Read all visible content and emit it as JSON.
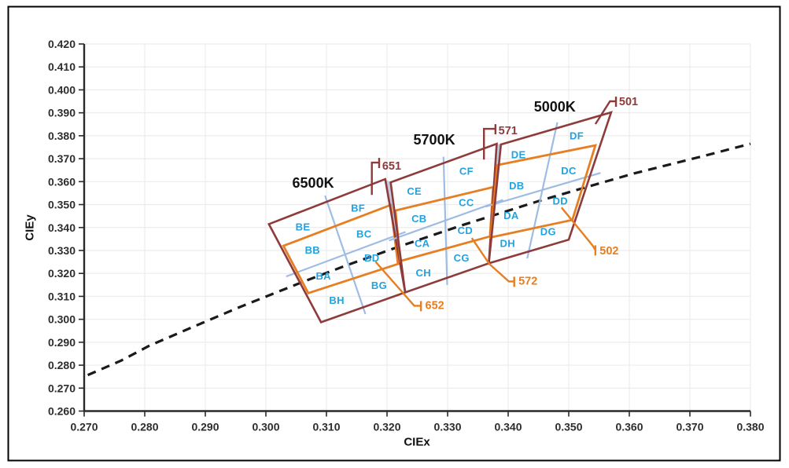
{
  "figure": {
    "background": "#ffffff",
    "border_color": "#000000"
  },
  "colors": {
    "maroon": "#8e3b3b",
    "orange": "#e67e22",
    "blue": "#9fbce2",
    "sliver_fill": "#b7c4dc",
    "bin_label": "#21a3e0",
    "locus": "#1a1a1a",
    "grid": "#ececec",
    "spine": "#2a2a2a",
    "tick_text": "#2d2d2d",
    "title_text": "#111111"
  },
  "chart_data": {
    "type": "line",
    "title": "",
    "xlabel": "CIEx",
    "ylabel": "CIEy",
    "xlim": [
      0.27,
      0.38
    ],
    "ylim": [
      0.26,
      0.42
    ],
    "xtick_step": 0.01,
    "ytick_step": 0.01,
    "tick_decimals": 3,
    "grid": true,
    "planckian_locus": [
      [
        0.2706,
        0.2757
      ],
      [
        0.2761,
        0.282
      ],
      [
        0.2807,
        0.2884
      ],
      [
        0.287,
        0.2956
      ],
      [
        0.2952,
        0.3048
      ],
      [
        0.3004,
        0.3103
      ],
      [
        0.3064,
        0.3166
      ],
      [
        0.3135,
        0.3237
      ],
      [
        0.3221,
        0.3318
      ],
      [
        0.3324,
        0.341
      ],
      [
        0.3451,
        0.3516
      ],
      [
        0.3538,
        0.3583
      ],
      [
        0.3608,
        0.3636
      ],
      [
        0.3726,
        0.3714
      ],
      [
        0.38,
        0.3765
      ]
    ],
    "overlap_slivers": [
      [
        [
          0.3197,
          0.3611
        ],
        [
          0.3206,
          0.3597
        ],
        [
          0.323,
          0.3117
        ]
      ],
      [
        [
          0.3381,
          0.3765
        ],
        [
          0.3388,
          0.3762
        ],
        [
          0.3368,
          0.3244
        ]
      ]
    ],
    "bins": [
      {
        "cct": "6500K",
        "title_pos": [
          0.3078,
          0.3594
        ],
        "outer_bin": {
          "label": "651",
          "polygon": [
            [
              0.3005,
              0.3415
            ],
            [
              0.3197,
              0.3611
            ],
            [
              0.323,
              0.3117
            ],
            [
              0.3091,
              0.2987
            ]
          ]
        },
        "inner_bin": {
          "label": "652",
          "polygon": [
            [
              0.3029,
              0.332
            ],
            [
              0.3206,
              0.3498
            ],
            [
              0.3218,
              0.3241
            ],
            [
              0.307,
              0.3114
            ]
          ]
        },
        "sub_bins": [
          {
            "label": "BE",
            "pos": [
              0.3061,
              0.3402
            ]
          },
          {
            "label": "BF",
            "pos": [
              0.3152,
              0.3484
            ]
          },
          {
            "label": "BB",
            "pos": [
              0.3077,
              0.3302
            ]
          },
          {
            "label": "BC",
            "pos": [
              0.3162,
              0.3371
            ]
          },
          {
            "label": "BA",
            "pos": [
              0.3095,
              0.3189
            ]
          },
          {
            "label": "BD",
            "pos": [
              0.3175,
              0.3268
            ]
          },
          {
            "label": "BH",
            "pos": [
              0.3117,
              0.3083
            ]
          },
          {
            "label": "BG",
            "pos": [
              0.3187,
              0.3148
            ]
          }
        ]
      },
      {
        "cct": "5700K",
        "title_pos": [
          0.3278,
          0.3782
        ],
        "outer_bin": {
          "label": "571",
          "polygon": [
            [
              0.3206,
              0.3597
            ],
            [
              0.3381,
              0.3765
            ],
            [
              0.3368,
              0.3244
            ],
            [
              0.323,
              0.3117
            ]
          ]
        },
        "inner_bin": {
          "label": "572",
          "polygon": [
            [
              0.3214,
              0.3474
            ],
            [
              0.3375,
              0.3576
            ],
            [
              0.337,
              0.3361
            ],
            [
              0.3222,
              0.3254
            ]
          ]
        },
        "sub_bins": [
          {
            "label": "CE",
            "pos": [
              0.3245,
              0.3559
            ]
          },
          {
            "label": "CF",
            "pos": [
              0.3331,
              0.3645
            ]
          },
          {
            "label": "CB",
            "pos": [
              0.3253,
              0.3439
            ]
          },
          {
            "label": "CC",
            "pos": [
              0.3331,
              0.3508
            ]
          },
          {
            "label": "CA",
            "pos": [
              0.3258,
              0.333
            ]
          },
          {
            "label": "CD",
            "pos": [
              0.3329,
              0.3388
            ]
          },
          {
            "label": "CH",
            "pos": [
              0.326,
              0.3203
            ]
          },
          {
            "label": "CG",
            "pos": [
              0.3323,
              0.3268
            ]
          }
        ]
      },
      {
        "cct": "5000K",
        "title_pos": [
          0.3477,
          0.3926
        ],
        "outer_bin": {
          "label": "501",
          "polygon": [
            [
              0.3388,
              0.3762
            ],
            [
              0.357,
              0.3902
            ],
            [
              0.35,
              0.3347
            ],
            [
              0.3368,
              0.3244
            ]
          ]
        },
        "inner_bin": {
          "label": "502",
          "polygon": [
            [
              0.3382,
              0.3672
            ],
            [
              0.3544,
              0.3758
            ],
            [
              0.3506,
              0.3433
            ],
            [
              0.3371,
              0.3357
            ]
          ]
        },
        "sub_bins": [
          {
            "label": "DE",
            "pos": [
              0.3417,
              0.3717
            ]
          },
          {
            "label": "DF",
            "pos": [
              0.3513,
              0.3799
            ]
          },
          {
            "label": "DB",
            "pos": [
              0.3414,
              0.3583
            ]
          },
          {
            "label": "DC",
            "pos": [
              0.35,
              0.3648
            ]
          },
          {
            "label": "DA",
            "pos": [
              0.3405,
              0.3453
            ]
          },
          {
            "label": "DD",
            "pos": [
              0.3486,
              0.3515
            ]
          },
          {
            "label": "DH",
            "pos": [
              0.3399,
              0.333
            ]
          },
          {
            "label": "DG",
            "pos": [
              0.3466,
              0.3382
            ]
          }
        ]
      }
    ],
    "callouts": [
      {
        "label": "651",
        "color_key": "maroon",
        "leader": [
          [
            0.3175,
            0.3542
          ],
          [
            0.3175,
            0.3683
          ],
          [
            0.3187,
            0.3683
          ]
        ],
        "text_pos": [
          0.3192,
          0.3666
        ]
      },
      {
        "label": "652",
        "color_key": "orange",
        "leader": [
          [
            0.3181,
            0.3251
          ],
          [
            0.3245,
            0.3059
          ],
          [
            0.3256,
            0.3059
          ]
        ],
        "text_pos": [
          0.3263,
          0.3059
        ]
      },
      {
        "label": "571",
        "color_key": "maroon",
        "leader": [
          [
            0.336,
            0.3696
          ],
          [
            0.336,
            0.383
          ],
          [
            0.3379,
            0.383
          ]
        ],
        "text_pos": [
          0.3384,
          0.382
        ]
      },
      {
        "label": "572",
        "color_key": "orange",
        "leader": [
          [
            0.334,
            0.3354
          ],
          [
            0.3369,
            0.3241
          ],
          [
            0.3401,
            0.3165
          ],
          [
            0.341,
            0.3165
          ]
        ],
        "text_pos": [
          0.3417,
          0.3165
        ]
      },
      {
        "label": "501",
        "color_key": "maroon",
        "leader": [
          [
            0.3544,
            0.3851
          ],
          [
            0.3568,
            0.395
          ],
          [
            0.3578,
            0.395
          ]
        ],
        "text_pos": [
          0.3583,
          0.3946
        ]
      },
      {
        "label": "502",
        "color_key": "orange",
        "leader": [
          [
            0.3488,
            0.3487
          ],
          [
            0.3539,
            0.3323
          ],
          [
            0.3544,
            0.3302
          ]
        ],
        "text_pos": [
          0.3551,
          0.3296
        ]
      }
    ]
  }
}
